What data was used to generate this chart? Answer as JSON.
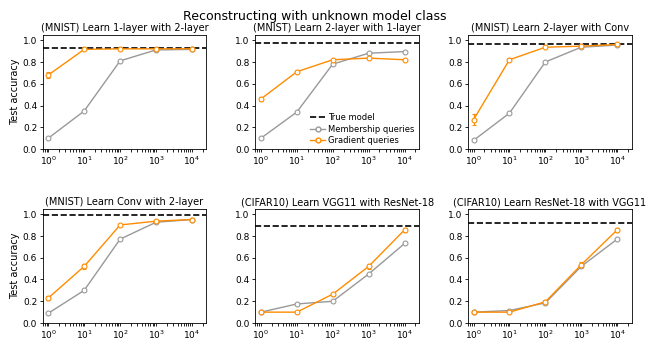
{
  "title": "Reconstructing with unknown model class",
  "x_values": [
    1,
    10,
    100,
    1000,
    10000
  ],
  "subplots": [
    {
      "title": "(MNIST) Learn 1-layer with 2-layer",
      "true_model": 0.925,
      "membership": [
        0.1,
        0.35,
        0.81,
        0.91,
        0.915
      ],
      "membership_err": [
        0.0,
        0.0,
        0.0,
        0.0,
        0.0
      ],
      "gradient": [
        0.68,
        0.915,
        0.92,
        0.92,
        0.92
      ],
      "gradient_err": [
        0.025,
        0.005,
        0.005,
        0.005,
        0.005
      ],
      "ylim": [
        0.0,
        1.05
      ],
      "yticks": [
        0.0,
        0.2,
        0.4,
        0.6,
        0.8,
        1.0
      ]
    },
    {
      "title": "(MNIST) Learn 2-layer with 1-layer",
      "true_model": 0.975,
      "membership": [
        0.1,
        0.34,
        0.78,
        0.88,
        0.895
      ],
      "membership_err": [
        0.0,
        0.0,
        0.0,
        0.0,
        0.0
      ],
      "gradient": [
        0.46,
        0.71,
        0.82,
        0.835,
        0.82
      ],
      "gradient_err": [
        0.015,
        0.015,
        0.01,
        0.008,
        0.008
      ],
      "ylim": [
        0.0,
        1.05
      ],
      "yticks": [
        0.0,
        0.2,
        0.4,
        0.6,
        0.8,
        1.0
      ]
    },
    {
      "title": "(MNIST) Learn 2-layer with Conv",
      "true_model": 0.965,
      "membership": [
        0.08,
        0.33,
        0.8,
        0.935,
        0.955
      ],
      "membership_err": [
        0.0,
        0.0,
        0.0,
        0.0,
        0.0
      ],
      "gradient": [
        0.27,
        0.82,
        0.935,
        0.945,
        0.96
      ],
      "gradient_err": [
        0.05,
        0.015,
        0.01,
        0.005,
        0.005
      ],
      "ylim": [
        0.0,
        1.05
      ],
      "yticks": [
        0.0,
        0.2,
        0.4,
        0.6,
        0.8,
        1.0
      ]
    },
    {
      "title": "(MNIST) Learn Conv with 2-layer",
      "true_model": 0.995,
      "membership": [
        0.09,
        0.3,
        0.77,
        0.925,
        0.95
      ],
      "membership_err": [
        0.0,
        0.0,
        0.0,
        0.0,
        0.0
      ],
      "gradient": [
        0.23,
        0.52,
        0.9,
        0.935,
        0.95
      ],
      "gradient_err": [
        0.02,
        0.025,
        0.01,
        0.008,
        0.005
      ],
      "ylim": [
        0.0,
        1.05
      ],
      "yticks": [
        0.0,
        0.2,
        0.4,
        0.6,
        0.8,
        1.0
      ]
    },
    {
      "title": "(CIFAR10) Learn VGG11 with ResNet-18",
      "true_model": 0.895,
      "membership": [
        0.1,
        0.175,
        0.2,
        0.45,
        0.73
      ],
      "membership_err": [
        0.0,
        0.0,
        0.0,
        0.0,
        0.0
      ],
      "gradient": [
        0.1,
        0.1,
        0.265,
        0.52,
        0.855
      ],
      "gradient_err": [
        0.005,
        0.005,
        0.015,
        0.025,
        0.015
      ],
      "ylim": [
        0.0,
        1.05
      ],
      "yticks": [
        0.0,
        0.2,
        0.4,
        0.6,
        0.8,
        1.0
      ]
    },
    {
      "title": "(CIFAR10) Learn ResNet-18 with VGG11",
      "true_model": 0.915,
      "membership": [
        0.1,
        0.115,
        0.185,
        0.52,
        0.77
      ],
      "membership_err": [
        0.0,
        0.0,
        0.0,
        0.0,
        0.0
      ],
      "gradient": [
        0.1,
        0.1,
        0.195,
        0.535,
        0.855
      ],
      "gradient_err": [
        0.005,
        0.005,
        0.015,
        0.025,
        0.015
      ],
      "ylim": [
        0.0,
        1.05
      ],
      "yticks": [
        0.0,
        0.2,
        0.4,
        0.6,
        0.8,
        1.0
      ]
    }
  ],
  "membership_color": "#999999",
  "gradient_color": "#FF8C00",
  "true_model_color": "#000000",
  "legend_labels": [
    "True model",
    "Membership queries",
    "Gradient queries"
  ],
  "legend_subplot": 1
}
